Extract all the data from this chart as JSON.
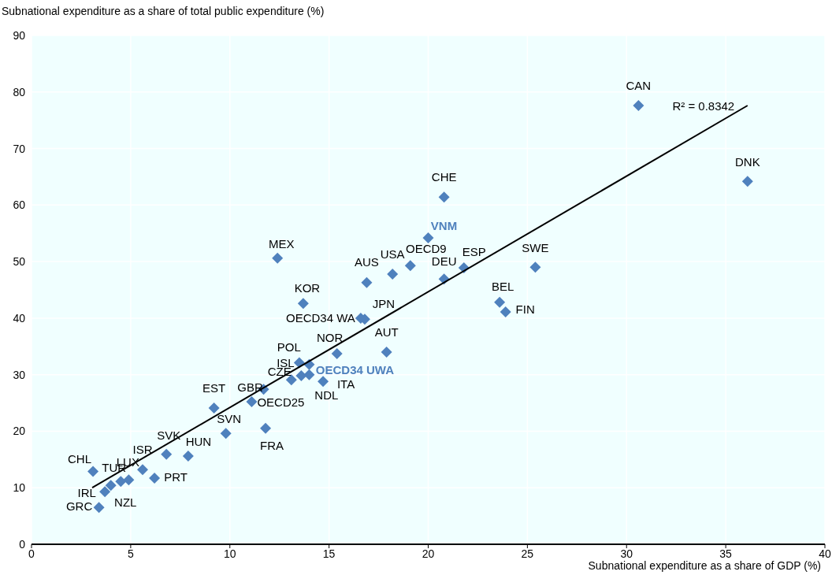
{
  "chart_data": {
    "type": "scatter",
    "xlabel": "Subnational  expenditure as a share of GDP (%)",
    "ylabel": "Subnational expenditure as a share of total public expenditure (%)",
    "xlim": [
      0,
      40
    ],
    "xticks": [
      0,
      5,
      10,
      15,
      20,
      25,
      30,
      35,
      40
    ],
    "ylim": [
      0,
      90
    ],
    "yticks": [
      0,
      10,
      20,
      30,
      40,
      50,
      60,
      70,
      80,
      90
    ],
    "grid": true,
    "marker": "diamond",
    "series": [
      {
        "color": "#4f81bd",
        "x": [
          30.6,
          36.1,
          20.8,
          12.4,
          21.8,
          25.4,
          19.1,
          18.2,
          20.8,
          16.9,
          13.7,
          23.6,
          23.9,
          16.8,
          16.6,
          15.4,
          17.9,
          13.5,
          14.0,
          13.6,
          13.1,
          14.7,
          11.7,
          11.1,
          9.2,
          9.8,
          11.8,
          6.8,
          7.9,
          5.6,
          6.2,
          3.1,
          4.9,
          4.0,
          3.7,
          4.5,
          3.4
        ],
        "values": [
          77.6,
          64.2,
          61.4,
          50.6,
          48.9,
          49.0,
          49.3,
          47.8,
          46.9,
          46.3,
          42.6,
          42.8,
          41.1,
          39.8,
          40.0,
          33.7,
          34.0,
          32.1,
          31.8,
          29.8,
          29.1,
          28.8,
          27.4,
          25.2,
          24.1,
          19.6,
          20.5,
          15.9,
          15.6,
          13.2,
          11.7,
          12.9,
          11.4,
          10.4,
          9.3,
          11.1,
          6.5
        ]
      },
      {
        "color": "#4f81bd",
        "x": [
          20.0,
          14.0
        ],
        "values": [
          54.2,
          30.0
        ]
      },
      {
        "type": "line",
        "marker": "none",
        "color": "#000000",
        "x": [
          3.06,
          36.1
        ],
        "values": [
          10.0,
          77.6
        ]
      }
    ],
    "annotations": [
      {
        "text": "CAN",
        "x": 30.6,
        "y": 77.6
      },
      {
        "text": "DNK",
        "x": 36.1,
        "y": 64.2
      },
      {
        "text": "CHE",
        "x": 20.8,
        "y": 61.4
      },
      {
        "text": "MEX",
        "x": 12.4,
        "y": 50.6
      },
      {
        "text": "ESP",
        "x": 21.8,
        "y": 48.9
      },
      {
        "text": "SWE",
        "x": 25.4,
        "y": 49.0
      },
      {
        "text": "OECD9",
        "x": 19.1,
        "y": 49.3
      },
      {
        "text": "USA",
        "x": 18.2,
        "y": 47.8
      },
      {
        "text": "DEU",
        "x": 20.8,
        "y": 46.9
      },
      {
        "text": "AUS",
        "x": 16.9,
        "y": 46.3
      },
      {
        "text": "KOR",
        "x": 13.7,
        "y": 42.6
      },
      {
        "text": "BEL",
        "x": 23.6,
        "y": 42.8
      },
      {
        "text": "FIN",
        "x": 23.9,
        "y": 41.1
      },
      {
        "text": "JPN",
        "x": 16.8,
        "y": 39.8
      },
      {
        "text": "OECD34 WA",
        "x": 16.6,
        "y": 40.0
      },
      {
        "text": "NOR",
        "x": 15.4,
        "y": 33.7
      },
      {
        "text": "AUT",
        "x": 17.9,
        "y": 34.0
      },
      {
        "text": "POL",
        "x": 13.5,
        "y": 32.1
      },
      {
        "text": "ISL",
        "x": 14.0,
        "y": 31.8
      },
      {
        "text": "NDL",
        "x": 13.6,
        "y": 29.8
      },
      {
        "text": "CZE",
        "x": 13.1,
        "y": 29.1
      },
      {
        "text": "ITA",
        "x": 14.7,
        "y": 28.8
      },
      {
        "text": "GBR",
        "x": 11.7,
        "y": 27.4
      },
      {
        "text": "OECD25",
        "x": 11.1,
        "y": 25.2
      },
      {
        "text": "EST",
        "x": 9.2,
        "y": 24.1
      },
      {
        "text": "SVN",
        "x": 9.8,
        "y": 19.6
      },
      {
        "text": "FRA",
        "x": 11.8,
        "y": 20.5
      },
      {
        "text": "SVK",
        "x": 6.8,
        "y": 15.9
      },
      {
        "text": "HUN",
        "x": 7.9,
        "y": 15.6
      },
      {
        "text": "ISR",
        "x": 5.6,
        "y": 13.2
      },
      {
        "text": "PRT",
        "x": 6.2,
        "y": 11.7
      },
      {
        "text": "CHL",
        "x": 3.1,
        "y": 12.9
      },
      {
        "text": "LUX",
        "x": 4.9,
        "y": 11.4
      },
      {
        "text": "TUR",
        "x": 4.0,
        "y": 10.4
      },
      {
        "text": "IRL",
        "x": 3.7,
        "y": 9.3
      },
      {
        "text": "NZL",
        "x": 4.5,
        "y": 11.1
      },
      {
        "text": "GRC",
        "x": 3.4,
        "y": 6.5
      },
      {
        "text": "VNM",
        "x": 20.0,
        "y": 54.2
      },
      {
        "text": "OECD34 UWA",
        "x": 14.0,
        "y": 30.0
      },
      "R² = 0.8342"
    ]
  }
}
